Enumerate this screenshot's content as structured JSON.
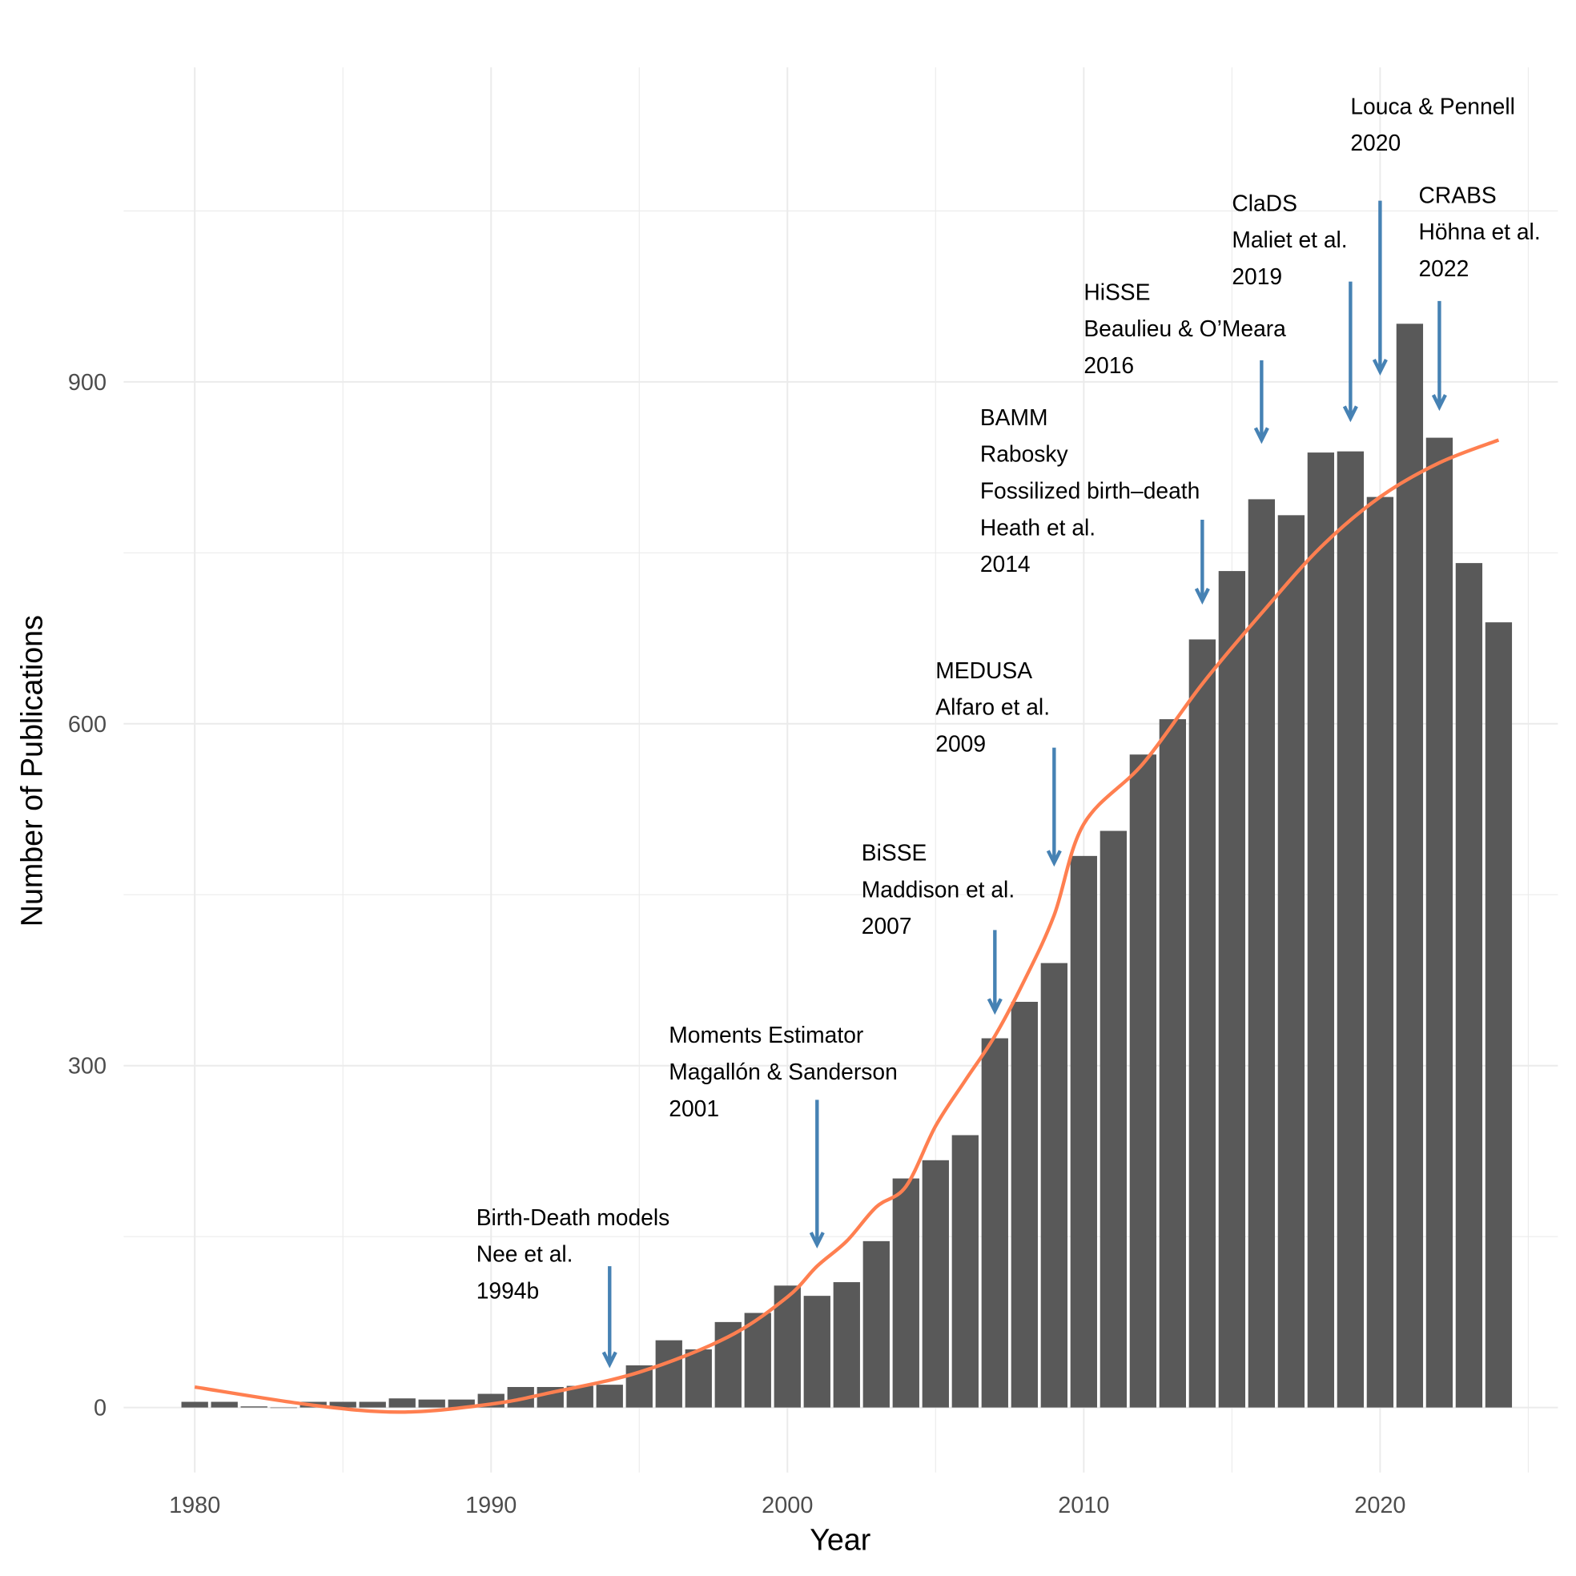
{
  "chart_data": {
    "type": "bar",
    "title": "",
    "xlabel": "Year",
    "ylabel": "Number of Publications",
    "xlim": [
      1977.6,
      2026
    ],
    "ylim": [
      -57,
      1176
    ],
    "x_ticks": [
      1980,
      1990,
      2000,
      2010,
      2020
    ],
    "y_ticks": [
      0,
      300,
      600,
      900
    ],
    "grid": true,
    "bar_color": "#595959",
    "x": [
      1980,
      1981,
      1982,
      1983,
      1984,
      1985,
      1986,
      1987,
      1988,
      1989,
      1990,
      1991,
      1992,
      1993,
      1994,
      1995,
      1996,
      1997,
      1998,
      1999,
      2000,
      2001,
      2002,
      2003,
      2004,
      2005,
      2006,
      2007,
      2008,
      2009,
      2010,
      2011,
      2012,
      2013,
      2014,
      2015,
      2016,
      2017,
      2018,
      2019,
      2020,
      2021,
      2022,
      2023,
      2024
    ],
    "values": [
      5,
      5,
      1,
      0,
      5,
      5,
      5,
      8,
      7,
      7,
      12,
      18,
      18,
      19,
      20,
      37,
      59,
      51,
      75,
      83,
      107,
      98,
      110,
      146,
      201,
      217,
      239,
      324,
      356,
      390,
      484,
      506,
      573,
      604,
      674,
      734,
      797,
      783,
      838,
      839,
      799,
      951,
      851,
      741,
      689
    ],
    "trend": {
      "color": "#ff7f50",
      "x": [
        1980,
        1984,
        1987,
        1990,
        1992,
        1995,
        1998,
        2000,
        2001,
        2002,
        2003,
        2004,
        2005,
        2006,
        2007,
        2008,
        2009,
        2010,
        2012,
        2014,
        2016,
        2018,
        2020,
        2022,
        2024
      ],
      "y": [
        18,
        2,
        -4,
        3,
        13,
        31,
        62,
        97,
        124,
        146,
        176,
        194,
        247,
        287,
        326,
        375,
        432,
        512,
        565,
        635,
        697,
        755,
        799,
        829,
        849
      ]
    },
    "annotation_color": "#4682b4",
    "annotations": [
      {
        "lines": [
          "Birth-Death models",
          "Nee et al.",
          "1994b"
        ],
        "text_x": 1989.5,
        "text_y": 160,
        "arrow_x": 1994,
        "arrow_from": 124,
        "arrow_to": 38
      },
      {
        "lines": [
          "Moments Estimator",
          "Magallón & Sanderson",
          "2001"
        ],
        "text_x": 1996.0,
        "text_y": 320,
        "arrow_x": 2001,
        "arrow_from": 270,
        "arrow_to": 143
      },
      {
        "lines": [
          "BiSSE",
          "Maddison et al.",
          "2007"
        ],
        "text_x": 2002.5,
        "text_y": 480,
        "arrow_x": 2007,
        "arrow_from": 419,
        "arrow_to": 348
      },
      {
        "lines": [
          "MEDUSA",
          "Alfaro et al.",
          "2009"
        ],
        "text_x": 2005.0,
        "text_y": 640,
        "arrow_x": 2009,
        "arrow_from": 579,
        "arrow_to": 478
      },
      {
        "lines": [
          "BAMM",
          "Rabosky",
          "Fossilized birth–death",
          "Heath et al.",
          "2014"
        ],
        "text_x": 2006.5,
        "text_y": 862,
        "arrow_x": 2014,
        "arrow_from": 779,
        "arrow_to": 708
      },
      {
        "lines": [
          "HiSSE",
          "Beaulieu & O’Meara",
          "2016"
        ],
        "text_x": 2010.0,
        "text_y": 972,
        "arrow_x": 2016,
        "arrow_from": 919,
        "arrow_to": 849
      },
      {
        "lines": [
          "ClaDS",
          "Maliet et al.",
          "2019"
        ],
        "text_x": 2015.0,
        "text_y": 1050,
        "arrow_x": 2019,
        "arrow_from": 988,
        "arrow_to": 868
      },
      {
        "lines": [
          "Louca & Pennell",
          "2020"
        ],
        "text_x": 2019.0,
        "text_y": 1135,
        "arrow_x": 2020,
        "arrow_from": 1059,
        "arrow_to": 909
      },
      {
        "lines": [
          "CRABS",
          "Höhna et al.",
          "2022"
        ],
        "text_x": 2021.3,
        "text_y": 1057,
        "arrow_x": 2022,
        "arrow_from": 971,
        "arrow_to": 878
      }
    ]
  }
}
